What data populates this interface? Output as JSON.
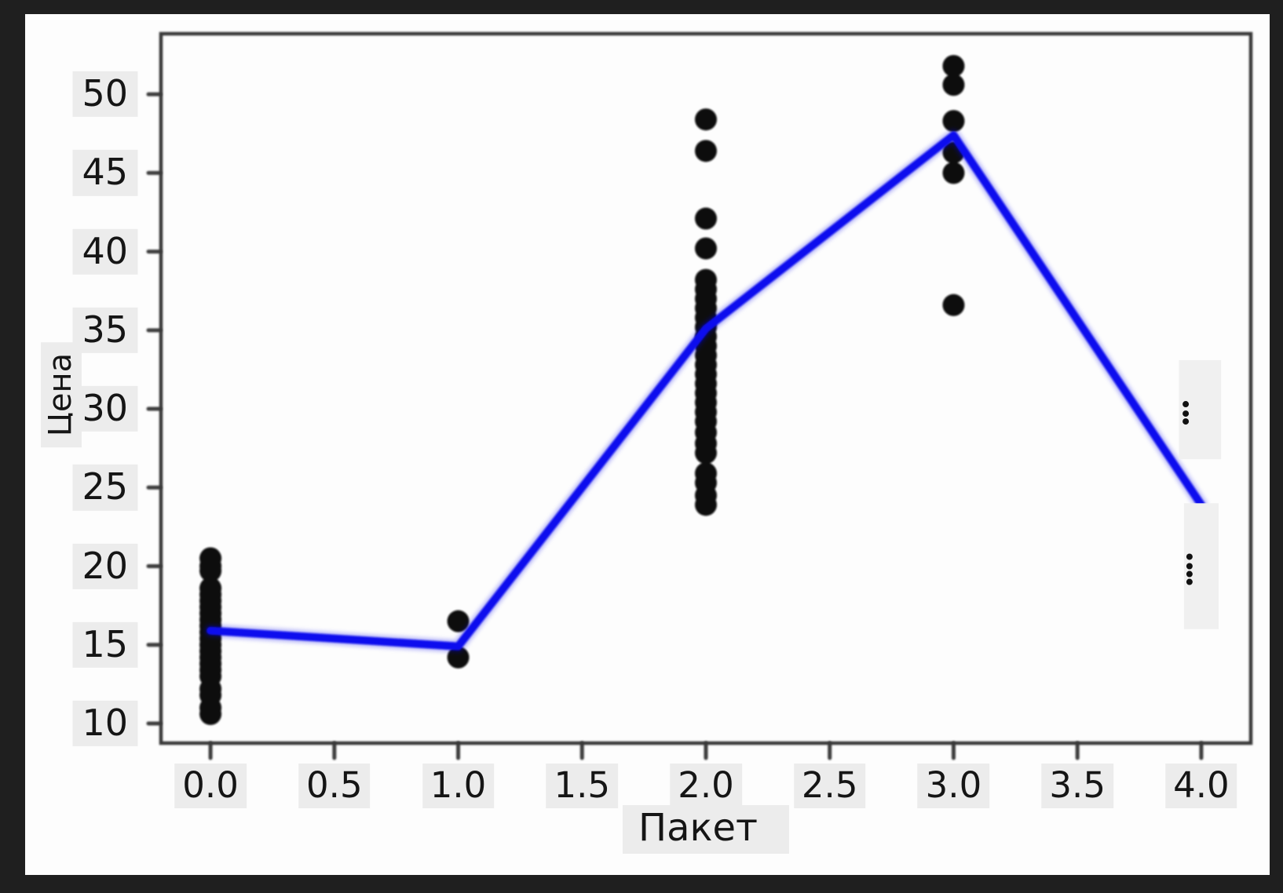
{
  "window": {
    "outer_background": "#1f1f1f",
    "figure_background": "#fdfdfd",
    "label_highlight_color": "#ececec",
    "spine_color": "#383838",
    "text_color": "#151515"
  },
  "chart_data": {
    "type": "scatter",
    "title": "",
    "xlabel": "Пакет",
    "ylabel": "Цена",
    "x_tick_values": [
      0,
      0.5,
      1,
      1.5,
      2,
      2.5,
      3,
      3.5,
      4
    ],
    "x_tick_labels": [
      "0.0",
      "0.5",
      "1.0",
      "1.5",
      "2.0",
      "2.5",
      "3.0",
      "3.5",
      "4.0"
    ],
    "y_tick_values": [
      10,
      15,
      20,
      25,
      30,
      35,
      40,
      45,
      50
    ],
    "y_tick_labels": [
      "10",
      "15",
      "20",
      "25",
      "30",
      "35",
      "40",
      "45",
      "50"
    ],
    "xlim": [
      -0.2,
      4.2
    ],
    "ylim": [
      8.75,
      53.85
    ],
    "grid": false,
    "legend": false,
    "scatter_color": "#0a0a0a",
    "line_color": "#0a0aee",
    "scatter_series": {
      "name": "observations",
      "groups": [
        {
          "x": 0,
          "y": [
            20.5,
            20.0,
            19.7,
            18.6,
            18.2,
            17.8,
            17.4,
            17.0,
            16.6,
            16.2,
            15.8,
            15.4,
            15.0,
            14.6,
            14.2,
            13.8,
            13.4,
            13.0,
            12.2,
            11.8,
            11.0,
            10.6
          ]
        },
        {
          "x": 1,
          "y": [
            16.5,
            14.2
          ]
        },
        {
          "x": 2,
          "y": [
            48.4,
            46.4,
            42.1,
            40.2,
            38.2,
            37.6,
            37.0,
            36.4,
            35.8,
            35.2,
            34.6,
            34.0,
            33.4,
            32.8,
            32.2,
            31.6,
            31.0,
            30.4,
            29.8,
            29.2,
            28.5,
            27.8,
            27.2,
            25.9,
            25.3,
            24.5,
            23.9
          ]
        },
        {
          "x": 3,
          "y": [
            51.8,
            50.6,
            48.3,
            46.3,
            45.0,
            36.6
          ]
        }
      ]
    },
    "line_series": {
      "name": "trend-line",
      "x": [
        0,
        1,
        2,
        3,
        4
      ],
      "y": [
        15.9,
        14.9,
        35.1,
        47.4,
        23.9
      ]
    },
    "masked_regions": [
      {
        "x_range": [
          3.91,
          4.08
        ],
        "y_range": [
          26.8,
          33.1
        ],
        "dot_ys": [
          30.3,
          29.7,
          29.2
        ]
      },
      {
        "x_range": [
          3.93,
          4.07
        ],
        "y_range": [
          16.0,
          24.0
        ],
        "dot_ys": [
          20.6,
          20.0,
          19.5,
          19.0
        ]
      }
    ]
  }
}
